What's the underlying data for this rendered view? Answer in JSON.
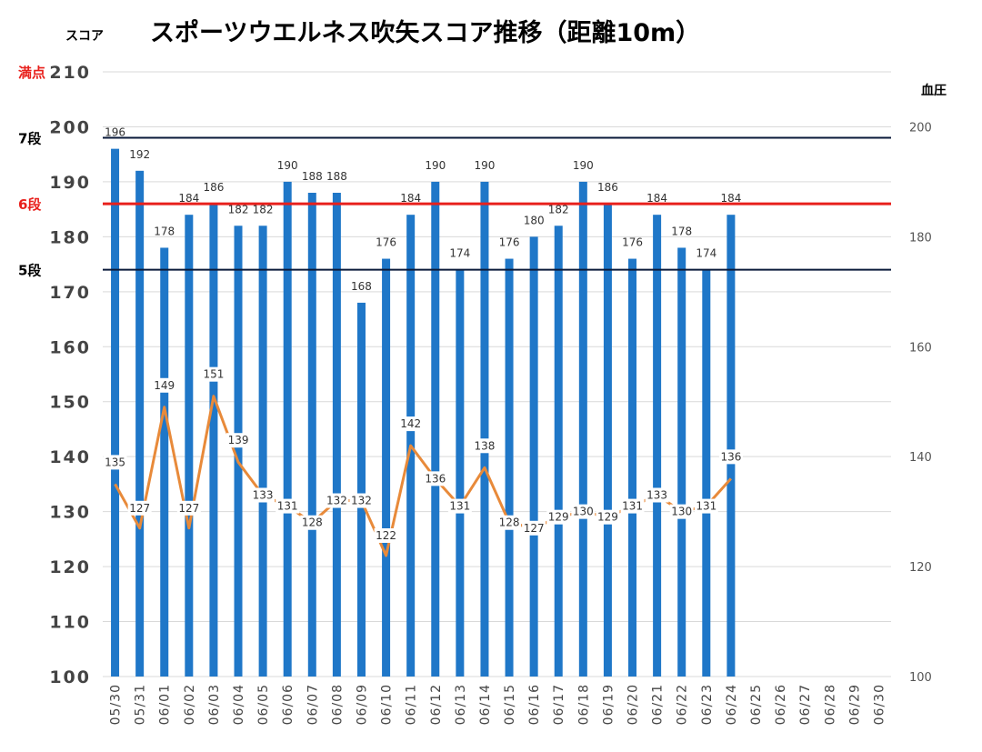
{
  "chart_data": {
    "type": "bar",
    "title": "スポーツウエルネス吹矢スコア推移（距離10m）",
    "ylabel": "スコア",
    "y2label": "血圧",
    "ylim": [
      100,
      210
    ],
    "y2lim": [
      100,
      210
    ],
    "yticks": [
      "100",
      "110",
      "120",
      "130",
      "140",
      "150",
      "160",
      "170",
      "180",
      "190",
      "200",
      "210"
    ],
    "y2ticks": [
      "100",
      "120",
      "140",
      "160",
      "180",
      "200"
    ],
    "grid": true,
    "categories": [
      "05/30",
      "05/31",
      "06/01",
      "06/02",
      "06/03",
      "06/04",
      "06/05",
      "06/06",
      "06/07",
      "06/08",
      "06/09",
      "06/10",
      "06/11",
      "06/12",
      "06/13",
      "06/14",
      "06/15",
      "06/16",
      "06/17",
      "06/18",
      "06/19",
      "06/20",
      "06/21",
      "06/22",
      "06/23",
      "06/24",
      "06/25",
      "06/26",
      "06/27",
      "06/28",
      "06/29",
      "06/30"
    ],
    "series": [
      {
        "type": "bar",
        "color": "#1f77c8",
        "values": [
          196,
          192,
          178,
          184,
          186,
          182,
          182,
          190,
          188,
          188,
          168,
          176,
          184,
          190,
          174,
          190,
          176,
          180,
          182,
          190,
          186,
          176,
          184,
          178,
          174,
          184,
          null,
          null,
          null,
          null,
          null,
          null
        ]
      },
      {
        "type": "line",
        "axis": "right",
        "color": "#e88a3a",
        "values": [
          135,
          127,
          149,
          127,
          151,
          139,
          133,
          131,
          128,
          132,
          132,
          122,
          142,
          136,
          131,
          138,
          128,
          127,
          129,
          130,
          129,
          131,
          133,
          130,
          131,
          136,
          null,
          null,
          null,
          null,
          null,
          null
        ]
      }
    ],
    "reference_lines": [
      {
        "label": "満点",
        "value": 210,
        "color": "#e8201c",
        "line_color": "#d9d9d9",
        "width": 1
      },
      {
        "label": "7段",
        "value": 198,
        "color": "#000000",
        "line_color": "#0a1a3a",
        "width": 2
      },
      {
        "label": "6段",
        "value": 186,
        "color": "#e8201c",
        "line_color": "#e8201c",
        "width": 3
      },
      {
        "label": "5段",
        "value": 174,
        "color": "#000000",
        "line_color": "#0a1a3a",
        "width": 2
      }
    ]
  }
}
